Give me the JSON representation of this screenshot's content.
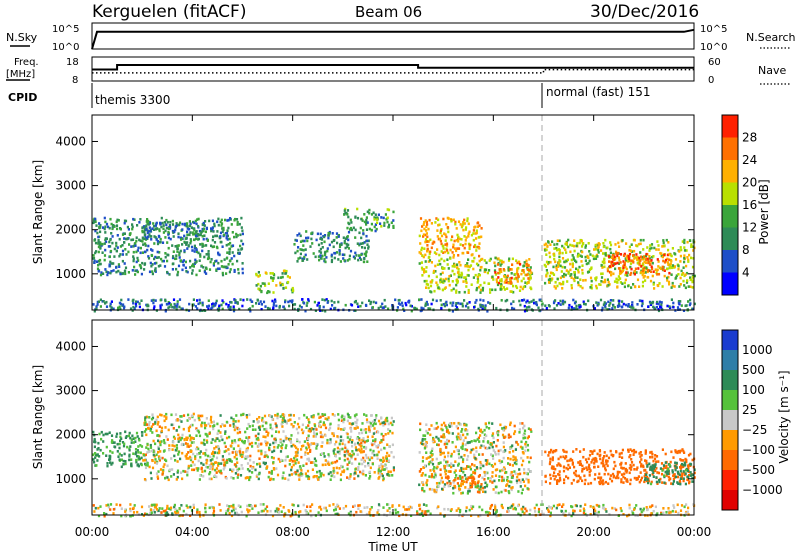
{
  "header": {
    "station": "Kerguelen (fitACF)",
    "beam": "Beam 06",
    "date": "30/Dec/2016"
  },
  "strip_labels": {
    "nsky": "N.Sky",
    "nsearch": "N.Search",
    "freq_line1": "Freq.",
    "freq_line2": "[MHz]",
    "nave": "Nave",
    "cpid": "CPID",
    "nsky_ticks": [
      "10^5",
      "10^0"
    ],
    "nsearch_ticks": [
      "10^5",
      "10^0"
    ],
    "freq_ticks": [
      "18",
      "8"
    ],
    "nave_ticks": [
      "60",
      "0"
    ]
  },
  "cpid_segments": [
    {
      "label": "themis 3300",
      "start_hour": 0,
      "end_hour": 18
    },
    {
      "label": "normal (fast) 151",
      "start_hour": 18,
      "end_hour": 24
    }
  ],
  "x_axis": {
    "label": "Time UT",
    "ticks": [
      "00:00",
      "04:00",
      "08:00",
      "12:00",
      "16:00",
      "20:00",
      "00:00"
    ],
    "tick_hours": [
      0,
      4,
      8,
      12,
      16,
      20,
      24
    ]
  },
  "range_axis": {
    "label": "Slant Range [km]",
    "ticks": [
      "1000",
      "2000",
      "3000",
      "4000"
    ],
    "tick_values": [
      1000,
      2000,
      3000,
      4000
    ],
    "ylim": [
      180,
      4600
    ]
  },
  "power_bar": {
    "label": "Power [dB]",
    "ticks": [
      "4",
      "8",
      "12",
      "16",
      "20",
      "24",
      "28"
    ],
    "colors": [
      "#0000ff",
      "#1e4fc8",
      "#2e8b57",
      "#3aa53a",
      "#b9e000",
      "#ffb000",
      "#ff7000",
      "#ff2000"
    ]
  },
  "velocity_bar": {
    "label": "Velocity [m s⁻¹]",
    "ticks": [
      "1000",
      "500",
      "100",
      "25",
      "−25",
      "−100",
      "−500",
      "−1000"
    ],
    "colors": [
      "#1a3ccf",
      "#2f7ea8",
      "#2e8b57",
      "#55c23a",
      "#c8c8c8",
      "#ff9a00",
      "#ff6a00",
      "#ff2000",
      "#e00000"
    ]
  },
  "chart_data": [
    {
      "type": "line",
      "title": "N.Sky / N.Search",
      "x_unit": "hour UT",
      "nsky": {
        "x": [
          0,
          0.2,
          23.6,
          24
        ],
        "y_log10": [
          0,
          4.3,
          4.3,
          4.8
        ]
      },
      "nsearch": {
        "x": [
          0,
          24
        ],
        "y_log10": [
          null,
          null
        ]
      }
    },
    {
      "type": "line",
      "title": "Freq. / Nave",
      "x_unit": "hour UT",
      "freq_mhz": {
        "x": [
          0,
          1.0,
          1.0,
          13.0,
          13.0,
          24
        ],
        "y": [
          13.2,
          13.2,
          15.3,
          15.3,
          14.0,
          14.0
        ]
      },
      "nave": {
        "x": [
          0,
          18,
          18,
          24
        ],
        "y": [
          22,
          22,
          31,
          31
        ]
      }
    },
    {
      "type": "heatmap",
      "title": "Power [dB]",
      "x_unit": "hour UT",
      "y_unit": "km",
      "xlim": [
        0,
        24
      ],
      "ylim": [
        180,
        4600
      ],
      "echo_regions": [
        {
          "t0": 0.0,
          "t1": 6.0,
          "r0": 1000,
          "r1": 2300,
          "power": 10
        },
        {
          "t0": 2.0,
          "t1": 4.5,
          "r0": 1800,
          "r1": 2200,
          "power": 9
        },
        {
          "t0": 6.5,
          "t1": 8.0,
          "r0": 600,
          "r1": 1100,
          "power": 16
        },
        {
          "t0": 8.0,
          "t1": 11.0,
          "r0": 1300,
          "r1": 2000,
          "power": 10
        },
        {
          "t0": 10.0,
          "t1": 12.0,
          "r0": 2000,
          "r1": 2500,
          "power": 12
        },
        {
          "t0": 13.0,
          "t1": 15.5,
          "r0": 1400,
          "r1": 2300,
          "power": 22
        },
        {
          "t0": 13.0,
          "t1": 17.5,
          "r0": 600,
          "r1": 1400,
          "power": 18
        },
        {
          "t0": 16.0,
          "t1": 17.5,
          "r0": 800,
          "r1": 1300,
          "power": 24
        },
        {
          "t0": 18.0,
          "t1": 24.0,
          "r0": 700,
          "r1": 1800,
          "power": 18
        },
        {
          "t0": 20.5,
          "t1": 23.0,
          "r0": 1000,
          "r1": 1500,
          "power": 26
        },
        {
          "t0": 0.0,
          "t1": 24.0,
          "r0": 180,
          "r1": 450,
          "power": 8
        }
      ]
    },
    {
      "type": "heatmap",
      "title": "Velocity [m s⁻¹]",
      "x_unit": "hour UT",
      "y_unit": "km",
      "xlim": [
        0,
        24
      ],
      "ylim": [
        180,
        4600
      ],
      "echo_regions": [
        {
          "t0": 0.0,
          "t1": 2.0,
          "r0": 1300,
          "r1": 2100,
          "velocity": 150
        },
        {
          "t0": 2.0,
          "t1": 12.0,
          "r0": 1000,
          "r1": 2500,
          "velocity": 0
        },
        {
          "t0": 13.0,
          "t1": 17.5,
          "r0": 700,
          "r1": 2300,
          "velocity": 0
        },
        {
          "t0": 14.0,
          "t1": 15.5,
          "r0": 900,
          "r1": 1200,
          "velocity": -150
        },
        {
          "t0": 18.0,
          "t1": 24.0,
          "r0": 900,
          "r1": 1700,
          "velocity": -300
        },
        {
          "t0": 22.0,
          "t1": 24.0,
          "r0": 900,
          "r1": 1400,
          "velocity": 200
        },
        {
          "t0": 0.0,
          "t1": 24.0,
          "r0": 180,
          "r1": 450,
          "velocity": 0
        }
      ]
    }
  ]
}
